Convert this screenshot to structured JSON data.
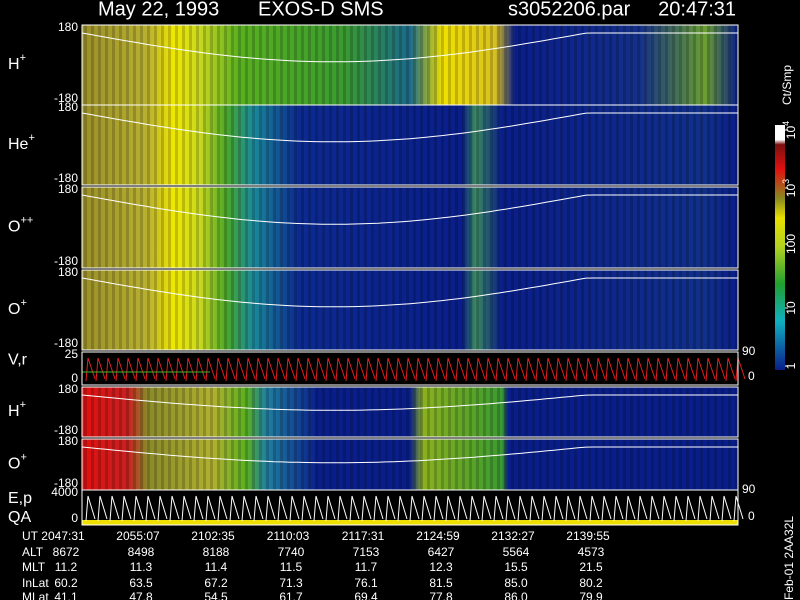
{
  "title": {
    "date": "May 22, 1993",
    "instrument": "EXOS-D SMS",
    "file": "s3052206.par",
    "time": "20:47:31"
  },
  "panels": [
    {
      "label": "H",
      "sup": "+",
      "top": "180",
      "bottom": "-180"
    },
    {
      "label": "He",
      "sup": "+",
      "top": "180",
      "bottom": "-180"
    },
    {
      "label": "O",
      "sup": "++",
      "top": "180",
      "bottom": "-180"
    },
    {
      "label": "O",
      "sup": "+",
      "top": "180",
      "bottom": "-180"
    },
    {
      "label": "V,r",
      "top": "25",
      "bottom": "0",
      "right_top": "90",
      "right_bottom": "0"
    },
    {
      "label": "H",
      "sup": "+",
      "top": "180",
      "bottom": "-180"
    },
    {
      "label": "O",
      "sup": "+",
      "top": "180",
      "bottom": "-180"
    },
    {
      "label": "E,p",
      "label2": "QA",
      "top": "4000",
      "bottom": "0",
      "right_top": "90",
      "right_bottom": "0"
    }
  ],
  "colorbar": {
    "unit": "Ct/Smp",
    "labels": [
      {
        "base": "10",
        "exp": "4"
      },
      {
        "base": "10",
        "exp": "3"
      },
      {
        "base": "100"
      },
      {
        "base": "10"
      },
      {
        "base": "1"
      }
    ]
  },
  "table": {
    "rows": [
      {
        "label": "UT",
        "values": [
          "2047:31",
          "2055:07",
          "2102:35",
          "2110:03",
          "2117:31",
          "2124:59",
          "2132:27",
          "2139:55"
        ]
      },
      {
        "label": "ALT",
        "values": [
          "8672",
          "8498",
          "8188",
          "7740",
          "7153",
          "6427",
          "5564",
          "4573"
        ]
      },
      {
        "label": "MLT",
        "values": [
          "11.2",
          "11.3",
          "11.4",
          "11.5",
          "11.7",
          "12.3",
          "15.5",
          "21.5"
        ]
      },
      {
        "label": "InLat",
        "values": [
          "60.2",
          "63.5",
          "67.2",
          "71.3",
          "76.1",
          "81.5",
          "85.0",
          "80.2"
        ]
      },
      {
        "label": "MLat",
        "values": [
          "41.1",
          "47.8",
          "54.5",
          "61.7",
          "69.4",
          "77.8",
          "86.0",
          "79.9"
        ]
      }
    ]
  },
  "footer": "Feb-01 2AA32L"
}
